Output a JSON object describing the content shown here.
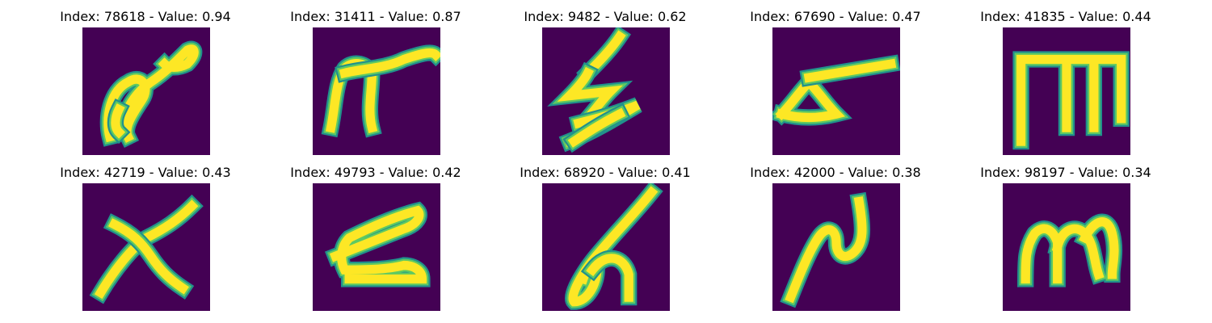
{
  "colors": {
    "background": "#440154",
    "stroke": "#fde725",
    "edge": "#21918c",
    "mid": "#5ec962"
  },
  "panels": [
    {
      "title": "Index: 78618 - Value: 0.94",
      "glyph": "loop-with-tail"
    },
    {
      "title": "Index: 31411 - Value: 0.87",
      "glyph": "n-with-bar"
    },
    {
      "title": "Index: 9482 - Value: 0.62",
      "glyph": "zigzag-lightning"
    },
    {
      "title": "Index: 67690 - Value: 0.47",
      "glyph": "triangle-with-bar"
    },
    {
      "title": "Index: 41835 - Value: 0.44",
      "glyph": "m-table"
    },
    {
      "title": "Index: 42719 - Value: 0.43",
      "glyph": "cross-x"
    },
    {
      "title": "Index: 49793 - Value: 0.42",
      "glyph": "z-stroke"
    },
    {
      "title": "Index: 68920 - Value: 0.41",
      "glyph": "script-loop"
    },
    {
      "title": "Index: 42000 - Value: 0.38",
      "glyph": "n-wave"
    },
    {
      "title": "Index: 98197 - Value: 0.34",
      "glyph": "m-round"
    }
  ]
}
